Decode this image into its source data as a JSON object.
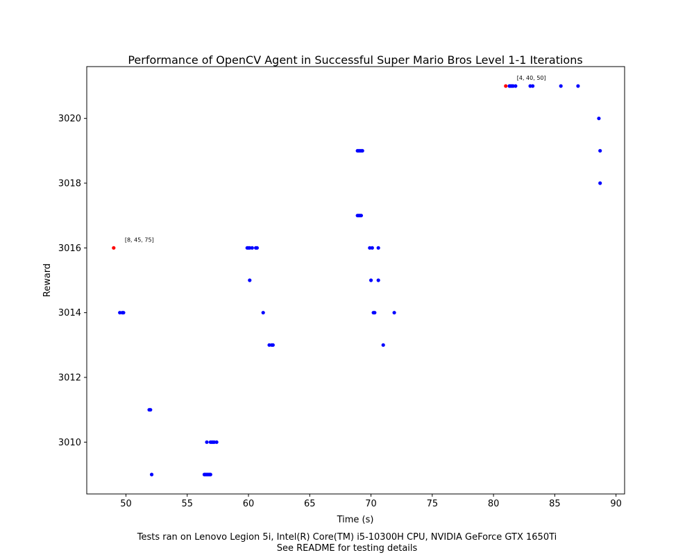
{
  "chart_data": {
    "type": "scatter",
    "title": "Performance of OpenCV Agent in Successful Super Mario Bros Level 1-1 Iterations",
    "xlabel": "Time (s)",
    "ylabel": "Reward",
    "xlim": [
      46.8,
      90.7
    ],
    "ylim": [
      3008.4,
      3021.6
    ],
    "x_ticks": [
      50,
      55,
      60,
      65,
      70,
      75,
      80,
      85,
      90
    ],
    "y_ticks": [
      3010,
      3012,
      3014,
      3016,
      3018,
      3020
    ],
    "grid": false,
    "colors": {
      "normal": "#0000ff",
      "highlight": "#ff0000"
    },
    "series": [
      {
        "color": "#0000ff",
        "points": [
          [
            49.5,
            3014
          ],
          [
            49.7,
            3014
          ],
          [
            49.8,
            3014
          ],
          [
            51.9,
            3011
          ],
          [
            52.0,
            3011
          ],
          [
            52.1,
            3009
          ],
          [
            56.4,
            3009
          ],
          [
            56.5,
            3009
          ],
          [
            56.6,
            3009
          ],
          [
            56.7,
            3009
          ],
          [
            56.8,
            3009
          ],
          [
            56.9,
            3009
          ],
          [
            56.6,
            3010
          ],
          [
            56.9,
            3010
          ],
          [
            57.0,
            3010
          ],
          [
            57.1,
            3010
          ],
          [
            57.2,
            3010
          ],
          [
            57.4,
            3010
          ],
          [
            59.9,
            3016
          ],
          [
            60.0,
            3016
          ],
          [
            60.1,
            3016
          ],
          [
            60.3,
            3016
          ],
          [
            60.6,
            3016
          ],
          [
            60.7,
            3016
          ],
          [
            60.1,
            3015
          ],
          [
            61.2,
            3014
          ],
          [
            61.7,
            3013
          ],
          [
            61.9,
            3013
          ],
          [
            62.0,
            3013
          ],
          [
            68.9,
            3019
          ],
          [
            69.0,
            3019
          ],
          [
            69.1,
            3019
          ],
          [
            69.2,
            3019
          ],
          [
            69.3,
            3019
          ],
          [
            68.9,
            3017
          ],
          [
            69.0,
            3017
          ],
          [
            69.1,
            3017
          ],
          [
            69.2,
            3017
          ],
          [
            69.9,
            3016
          ],
          [
            70.1,
            3016
          ],
          [
            70.6,
            3016
          ],
          [
            70.0,
            3015
          ],
          [
            70.6,
            3015
          ],
          [
            70.2,
            3014
          ],
          [
            70.3,
            3014
          ],
          [
            71.9,
            3014
          ],
          [
            71.0,
            3013
          ],
          [
            81.3,
            3021
          ],
          [
            81.4,
            3021
          ],
          [
            81.5,
            3021
          ],
          [
            81.6,
            3021
          ],
          [
            81.8,
            3021
          ],
          [
            83.0,
            3021
          ],
          [
            83.2,
            3021
          ],
          [
            85.5,
            3021
          ],
          [
            86.9,
            3021
          ],
          [
            88.6,
            3020
          ],
          [
            88.7,
            3019
          ],
          [
            88.7,
            3018
          ]
        ]
      },
      {
        "color": "#ff0000",
        "points": [
          [
            49.0,
            3016
          ],
          [
            81.0,
            3021
          ]
        ]
      }
    ],
    "annotations": [
      {
        "text": "[8, 45, 75]",
        "x": 49.0,
        "y": 3016
      },
      {
        "text": "[4, 40, 50]",
        "x": 81.0,
        "y": 3021
      }
    ]
  },
  "footer": {
    "line1": "Tests ran on Lenovo Legion 5i, Intel(R) Core(TM) i5-10300H CPU, NVIDIA GeForce GTX 1650Ti",
    "line2": "See README for testing details"
  }
}
